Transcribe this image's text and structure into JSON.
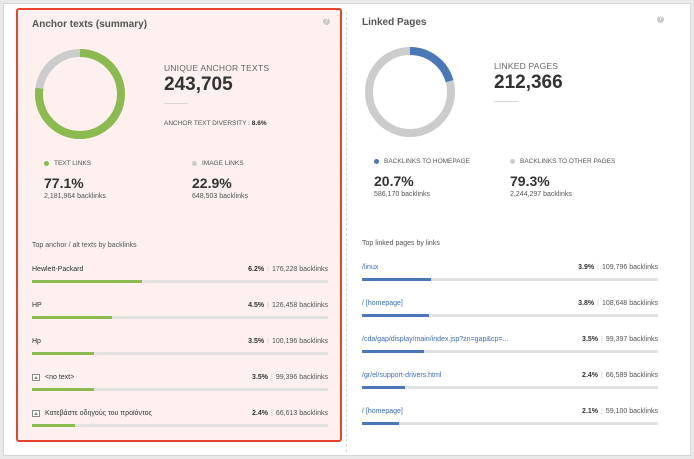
{
  "left_panel": {
    "title": "Anchor texts (summary)",
    "help_icon": "question-icon",
    "donut": {
      "value_pct": 77.1,
      "color": "#8bba4f",
      "rest_color": "#cccccc"
    },
    "metric_label": "UNIQUE ANCHOR TEXTS",
    "metric_value": "243,705",
    "diversity_label": "ANCHOR TEXT DIVERSITY :",
    "diversity_value": "8.6%",
    "stats": [
      {
        "label": "TEXT LINKS",
        "dot_color": "#8bba4f",
        "value": "77.1%",
        "sub": "2,181,964 backlinks"
      },
      {
        "label": "IMAGE LINKS",
        "dot_color": "#cccccc",
        "value": "22.9%",
        "sub": "648,503 backlinks"
      }
    ],
    "list_title": "Top anchor / alt texts by backlinks",
    "bar_color": "#8bba4f",
    "rows": [
      {
        "name": "Hewlett-Packard",
        "pct": "6.2%",
        "backlinks": "176,228 backlinks",
        "fill": 0.062,
        "icon": ""
      },
      {
        "name": "HP",
        "pct": "4.5%",
        "backlinks": "126,458 backlinks",
        "fill": 0.045,
        "icon": ""
      },
      {
        "name": "Hp",
        "pct": "3.5%",
        "backlinks": "100,196 backlinks",
        "fill": 0.035,
        "icon": ""
      },
      {
        "name": "<no text>",
        "pct": "3.5%",
        "backlinks": "99,396 backlinks",
        "fill": 0.035,
        "icon": "image-icon"
      },
      {
        "name": "Κατεβάστε οδηγούς του προϊόντος",
        "pct": "2.4%",
        "backlinks": "66,613 backlinks",
        "fill": 0.024,
        "icon": "image-icon"
      }
    ]
  },
  "right_panel": {
    "title": "Linked Pages",
    "help_icon": "question-icon",
    "donut": {
      "value_pct": 20.7,
      "color": "#4a78b8",
      "rest_color": "#cccccc"
    },
    "metric_label": "LINKED PAGES",
    "metric_value": "212,366",
    "stats": [
      {
        "label": "BACKLINKS TO HOMEPAGE",
        "dot_color": "#4a78b8",
        "value": "20.7%",
        "sub": "586,170 backlinks"
      },
      {
        "label": "BACKLINKS TO OTHER PAGES",
        "dot_color": "#cccccc",
        "value": "79.3%",
        "sub": "2,244,297 backlinks"
      }
    ],
    "list_title": "Top linked pages by links",
    "bar_color": "#4a78b8",
    "rows": [
      {
        "name": "/linux",
        "pct": "3.9%",
        "backlinks": "109,796 backlinks",
        "fill": 0.039
      },
      {
        "name": "/ [homepage]",
        "pct": "3.8%",
        "backlinks": "108,648 backlinks",
        "fill": 0.038
      },
      {
        "name": "/cda/gap/display/main/index.jsp?zn=gap&cp=...",
        "pct": "3.5%",
        "backlinks": "99,397 backlinks",
        "fill": 0.035
      },
      {
        "name": "/gr/el/support-drivers.html",
        "pct": "2.4%",
        "backlinks": "66,589 backlinks",
        "fill": 0.024
      },
      {
        "name": "/ [homepage]",
        "pct": "2.1%",
        "backlinks": "59,100 backlinks",
        "fill": 0.021
      }
    ]
  }
}
